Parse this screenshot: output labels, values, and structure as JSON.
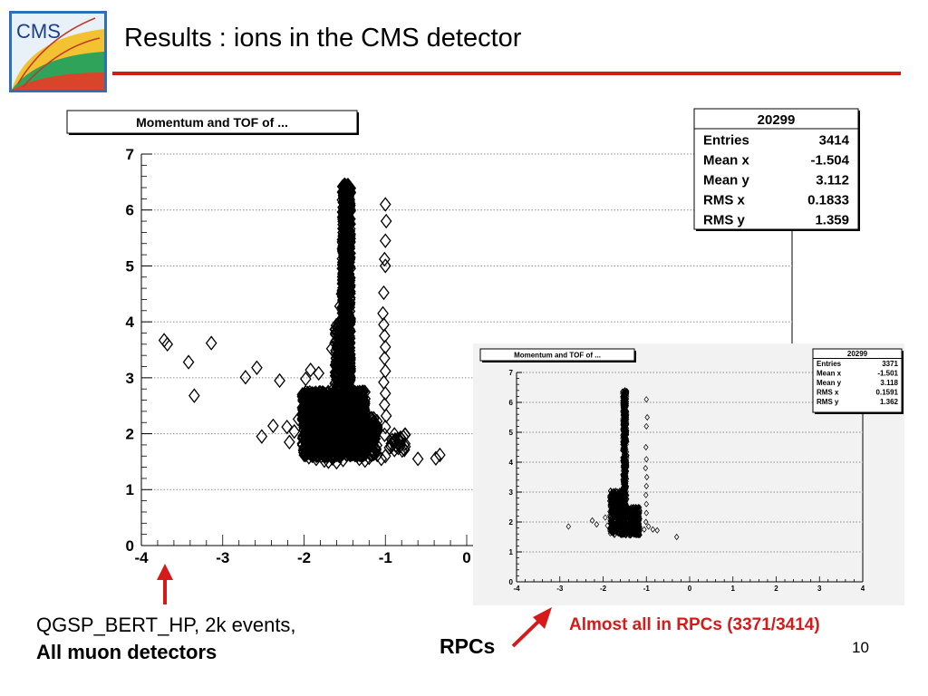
{
  "slide": {
    "title": "Results : ions in the CMS detector",
    "logo_text": "CMS",
    "caption_line1": "QGSP_BERT_HP, 2k events,",
    "caption_line2": "All muon detectors",
    "rpcs_label": "RPCs",
    "note": "Almost all in RPCs (3371/3414)",
    "page_number": "10"
  },
  "colors": {
    "accent": "#d61a1a",
    "marker": "#000000",
    "grid": "#9a9a9a",
    "inset_bg": "#f2f2f2"
  },
  "chart_data": [
    {
      "type": "scatter",
      "title": "Momentum and TOF of ...",
      "marker": "open-diamond",
      "xlim": [
        -4,
        4
      ],
      "ylim": [
        0,
        7
      ],
      "xticks": [
        -4,
        -3,
        -2,
        -1,
        0
      ],
      "yticks": [
        0,
        1,
        2,
        3,
        4,
        5,
        6,
        7
      ],
      "grid": "horizontal-dotted",
      "stats": {
        "name": "20299",
        "rows": [
          {
            "label": "Entries",
            "value": "3414"
          },
          {
            "label": "Mean x",
            "value": "-1.504"
          },
          {
            "label": "Mean y",
            "value": "3.112"
          },
          {
            "label": "RMS x",
            "value": "0.1833"
          },
          {
            "label": "RMS y",
            "value": "1.359"
          }
        ]
      },
      "points": [
        [
          -3.72,
          3.67
        ],
        [
          -3.68,
          3.6
        ],
        [
          -3.42,
          3.28
        ],
        [
          -3.35,
          2.68
        ],
        [
          -3.14,
          3.62
        ],
        [
          -2.72,
          3.01
        ],
        [
          -2.58,
          3.18
        ],
        [
          -2.52,
          1.95
        ],
        [
          -2.38,
          2.14
        ],
        [
          -2.3,
          2.95
        ],
        [
          -2.21,
          2.12
        ],
        [
          -2.18,
          1.85
        ],
        [
          -2.12,
          2.04
        ],
        [
          -2.07,
          2.26
        ],
        [
          -1.98,
          2.98
        ],
        [
          -1.92,
          3.14
        ],
        [
          -1.86,
          2.02
        ],
        [
          -1.82,
          3.08
        ],
        [
          -1.98,
          1.62
        ],
        [
          -1.94,
          1.58
        ],
        [
          -1.85,
          1.55
        ],
        [
          -1.75,
          1.52
        ],
        [
          -1.65,
          1.56
        ],
        [
          -1.7,
          1.5
        ],
        [
          -1.6,
          1.49
        ],
        [
          -1.52,
          1.53
        ],
        [
          -1.32,
          1.55
        ],
        [
          -1.25,
          1.52
        ],
        [
          -1.2,
          1.57
        ],
        [
          -1.28,
          1.68
        ],
        [
          -1.35,
          1.72
        ],
        [
          -1.22,
          1.82
        ],
        [
          -1.15,
          1.9
        ],
        [
          -1.1,
          1.62
        ],
        [
          -1.05,
          1.55
        ],
        [
          -1.0,
          1.6
        ],
        [
          -0.95,
          1.75
        ],
        [
          -0.9,
          1.85
        ],
        [
          -0.82,
          1.78
        ],
        [
          -0.76,
          1.82
        ],
        [
          -0.6,
          1.55
        ],
        [
          -0.38,
          1.56
        ],
        [
          -0.33,
          1.62
        ],
        [
          -1.0,
          6.1
        ],
        [
          -0.99,
          5.8
        ],
        [
          -1.0,
          5.45
        ],
        [
          -1.01,
          5.12
        ],
        [
          -1.0,
          5.0
        ],
        [
          -1.02,
          4.52
        ],
        [
          -1.03,
          4.15
        ],
        [
          -1.02,
          3.95
        ],
        [
          -1.01,
          3.75
        ],
        [
          -1.0,
          3.55
        ],
        [
          -1.01,
          3.35
        ],
        [
          -1.0,
          3.12
        ],
        [
          -1.02,
          2.92
        ],
        [
          -1.0,
          2.72
        ],
        [
          -1.01,
          2.52
        ],
        [
          -0.99,
          2.32
        ],
        [
          -1.0,
          2.12
        ],
        [
          -1.01,
          1.98
        ],
        [
          -1.62,
          2.62
        ],
        [
          -1.6,
          2.72
        ],
        [
          -1.64,
          2.8
        ],
        [
          -1.58,
          2.55
        ],
        [
          -1.55,
          2.82
        ],
        [
          -1.66,
          3.52
        ],
        [
          -1.62,
          3.62
        ],
        [
          -1.58,
          3.55
        ],
        [
          -1.56,
          4.28
        ],
        [
          -1.54,
          4.5
        ],
        [
          -1.5,
          6.45
        ],
        [
          -1.48,
          6.38
        ],
        [
          -1.45,
          6.32
        ]
      ],
      "clusters": [
        {
          "x_range": [
            -1.53,
            -1.43
          ],
          "y_range": [
            2.0,
            6.45
          ],
          "count": 1100
        },
        {
          "x_range": [
            -2.02,
            -1.55
          ],
          "y_range": [
            1.6,
            2.75
          ],
          "count": 800
        },
        {
          "x_range": [
            -1.55,
            -1.25
          ],
          "y_range": [
            1.6,
            2.75
          ],
          "count": 700
        },
        {
          "x_range": [
            -1.3,
            -1.1
          ],
          "y_range": [
            1.62,
            2.3
          ],
          "count": 130
        },
        {
          "x_range": [
            -1.62,
            -1.55
          ],
          "y_range": [
            2.3,
            4.0
          ],
          "count": 130
        },
        {
          "x_range": [
            -0.95,
            -0.75
          ],
          "y_range": [
            1.7,
            2.0
          ],
          "count": 25
        }
      ]
    },
    {
      "type": "scatter",
      "title": "Momentum and TOF of ...",
      "marker": "open-diamond",
      "xlim": [
        -4,
        4
      ],
      "ylim": [
        0,
        7
      ],
      "xticks": [
        -4,
        -3,
        -2,
        -1,
        0,
        1,
        2,
        3,
        4
      ],
      "yticks": [
        0,
        1,
        2,
        3,
        4,
        5,
        6,
        7
      ],
      "grid": "horizontal-dotted",
      "stats": {
        "name": "20299",
        "rows": [
          {
            "label": "Entries",
            "value": "3371"
          },
          {
            "label": "Mean x",
            "value": "-1.501"
          },
          {
            "label": "Mean y",
            "value": "3.118"
          },
          {
            "label": "RMS x",
            "value": "0.1591"
          },
          {
            "label": "RMS y",
            "value": "1.362"
          }
        ]
      },
      "points": [
        [
          -2.8,
          1.85
        ],
        [
          -2.25,
          2.05
        ],
        [
          -2.15,
          1.92
        ],
        [
          -1.95,
          2.15
        ],
        [
          -1.9,
          1.88
        ],
        [
          -1.25,
          1.62
        ],
        [
          -1.15,
          1.7
        ],
        [
          -1.05,
          1.75
        ],
        [
          -0.95,
          1.85
        ],
        [
          -0.85,
          1.75
        ],
        [
          -0.75,
          1.72
        ],
        [
          -0.3,
          1.5
        ],
        [
          -1.0,
          6.1
        ],
        [
          -0.98,
          5.5
        ],
        [
          -1.0,
          5.2
        ],
        [
          -1.01,
          4.5
        ],
        [
          -1.0,
          4.1
        ],
        [
          -1.02,
          3.8
        ],
        [
          -0.99,
          3.5
        ],
        [
          -1.0,
          3.2
        ],
        [
          -1.01,
          2.9
        ],
        [
          -1.0,
          2.6
        ],
        [
          -1.0,
          2.3
        ],
        [
          -1.01,
          2.0
        ],
        [
          -1.5,
          6.4
        ],
        [
          -1.48,
          6.3
        ]
      ],
      "clusters": [
        {
          "x_range": [
            -1.55,
            -1.45
          ],
          "y_range": [
            1.7,
            6.4
          ],
          "count": 700
        },
        {
          "x_range": [
            -1.85,
            -1.5
          ],
          "y_range": [
            1.55,
            3.05
          ],
          "count": 500
        },
        {
          "x_range": [
            -1.5,
            -1.15
          ],
          "y_range": [
            1.55,
            2.5
          ],
          "count": 350
        },
        {
          "x_range": [
            -1.72,
            -1.6
          ],
          "y_range": [
            2.2,
            2.9
          ],
          "count": 60
        }
      ]
    }
  ]
}
